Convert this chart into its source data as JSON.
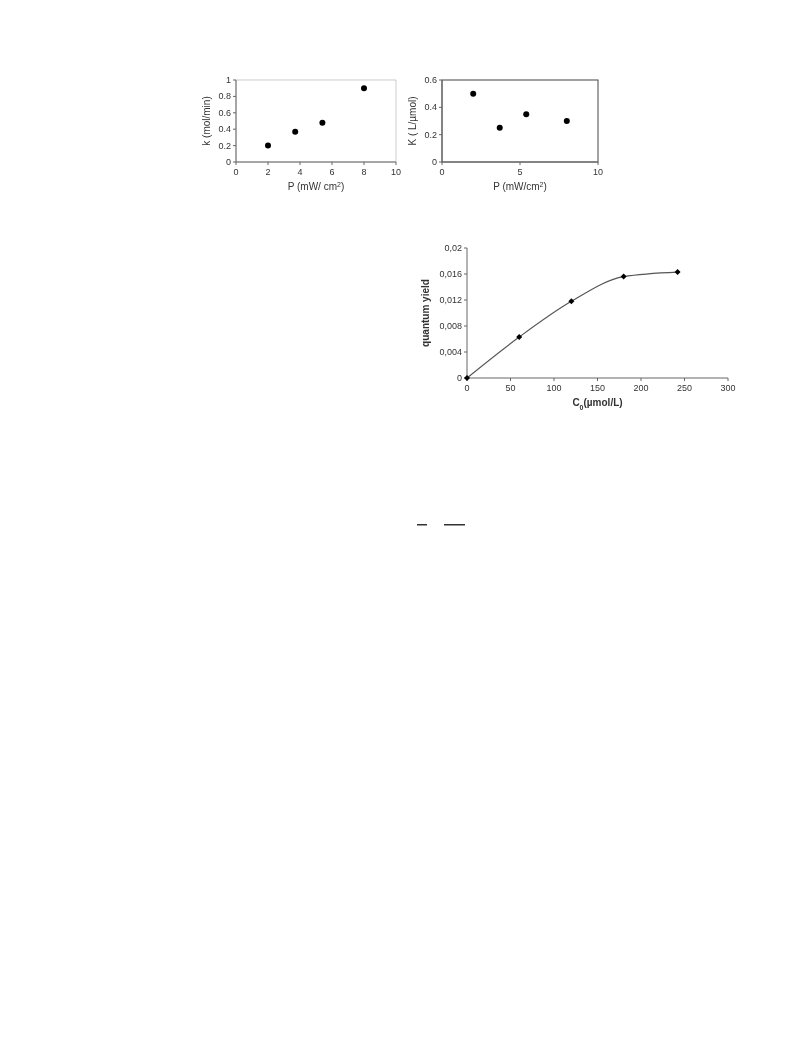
{
  "chart_data": [
    {
      "type": "scatter",
      "xlabel": "P (mW/ cm$^{2}$)",
      "ylabel": "k (mol/min)",
      "x": [
        2,
        3.7,
        5.4,
        8
      ],
      "values": [
        0.2,
        0.37,
        0.48,
        0.9
      ],
      "color": "#000000",
      "marker": "circle",
      "xlim": [
        0,
        10
      ],
      "xticks": [
        0,
        2,
        4,
        6,
        8,
        10
      ],
      "ylim": [
        0,
        1
      ],
      "yticks": [
        0,
        0.2,
        0.4,
        0.6,
        0.8,
        1
      ],
      "grid": false
    },
    {
      "type": "scatter",
      "xlabel": "P (mW/cm$^{2}$)",
      "ylabel": "K ( L/µmol)",
      "x": [
        2,
        3.7,
        5.4,
        8
      ],
      "values": [
        0.5,
        0.25,
        0.35,
        0.3
      ],
      "color": "#000000",
      "marker": "circle",
      "xlim": [
        0,
        10
      ],
      "xticks": [
        0,
        5,
        10
      ],
      "ylim": [
        0,
        0.6
      ],
      "yticks": [
        0,
        0.2,
        0.4,
        0.6
      ],
      "grid": false
    },
    {
      "type": "line",
      "xlabel": "C$_{0}$(µmol/L)",
      "ylabel": "quantum yield",
      "x": [
        0,
        60,
        120,
        180,
        242
      ],
      "values": [
        0,
        0.0063,
        0.0118,
        0.0156,
        0.0163
      ],
      "color": "#555555",
      "marker": "diamond",
      "xlim": [
        0,
        300
      ],
      "xticks": [
        0,
        50,
        100,
        150,
        200,
        250,
        300
      ],
      "ylim": [
        0,
        0.02
      ],
      "yticks": [
        0,
        {
          "value": 0.004,
          "label": "0,004"
        },
        {
          "value": 0.008,
          "label": "0,008"
        },
        {
          "value": 0.012,
          "label": "0,012"
        },
        {
          "value": 0.016,
          "label": "0,016"
        },
        {
          "value": 0.02,
          "label": "0,02"
        }
      ],
      "grid": false
    }
  ]
}
